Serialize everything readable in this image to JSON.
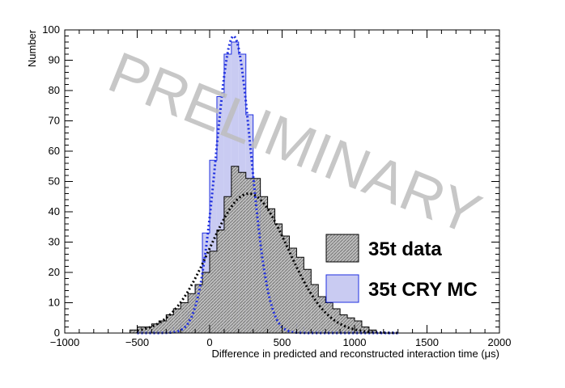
{
  "chart_data": {
    "type": "histogram",
    "xlabel": "Difference in predicted and reconstructed interaction time (μs)",
    "ylabel": "Number",
    "xlim": [
      -1000,
      2000
    ],
    "ylim": [
      0,
      100
    ],
    "x_ticks": [
      "−1000",
      "−500",
      "0",
      "500",
      "1000",
      "1500",
      "2000"
    ],
    "y_ticks": [
      "0",
      "10",
      "20",
      "30",
      "40",
      "50",
      "60",
      "70",
      "80",
      "90",
      "100"
    ],
    "watermark": "PRELIMINARY",
    "legend_position": "bottom-right",
    "series": [
      {
        "name": "35t data",
        "style": "hatched-gray-step",
        "color": "#000000",
        "fill": "#9a9a9a",
        "bins_x": [
          -550,
          -500,
          -450,
          -400,
          -350,
          -300,
          -250,
          -200,
          -150,
          -100,
          -50,
          0,
          50,
          100,
          150,
          200,
          250,
          300,
          350,
          400,
          450,
          500,
          550,
          600,
          650,
          700,
          750,
          800,
          850,
          900,
          950,
          1000,
          1050,
          1100
        ],
        "bins_y": [
          1,
          2,
          2,
          3,
          4,
          6,
          8,
          10,
          13,
          16,
          20,
          27,
          34,
          45,
          55,
          53,
          51,
          51,
          45,
          41,
          36,
          32,
          28,
          25,
          21,
          16,
          12,
          10,
          8,
          6,
          5,
          4,
          2,
          1
        ],
        "fit": {
          "mean": 270,
          "sigma": 270,
          "amplitude": 46
        }
      },
      {
        "name": "35t CRY MC",
        "style": "light-blue-step",
        "color": "#1f2fe0",
        "fill": "#c9cbf2",
        "bins_x": [
          -300,
          -250,
          -200,
          -150,
          -100,
          -50,
          0,
          50,
          100,
          150,
          200,
          250,
          300,
          350,
          400,
          450,
          500,
          550,
          600,
          650,
          700
        ],
        "bins_y": [
          1,
          2,
          4,
          7,
          16,
          33,
          57,
          78,
          92,
          96,
          92,
          72,
          47,
          25,
          13,
          8,
          5,
          3,
          2,
          1,
          1
        ],
        "fit": {
          "mean": 165,
          "sigma": 120,
          "amplitude": 98
        }
      }
    ]
  }
}
